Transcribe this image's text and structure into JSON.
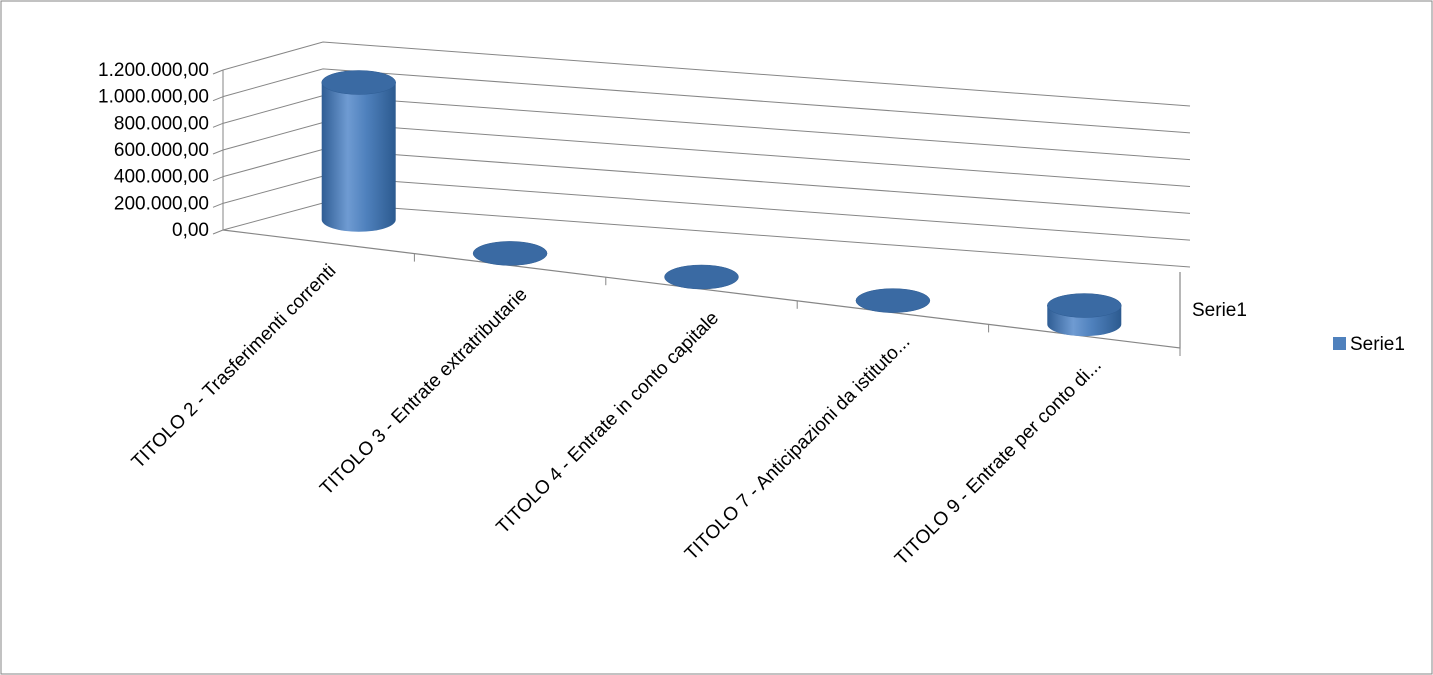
{
  "chart_data": {
    "type": "bar",
    "style": "3d-cylinder",
    "categories": [
      "TITOLO 2 - Trasferimenti correnti",
      "TITOLO 3 - Entrate extratributarie",
      "TITOLO 4 - Entrate in conto capitale",
      "TITOLO 7 - Anticipazioni da istituto...",
      "TITOLO 9 - Entrate per conto di..."
    ],
    "series": [
      {
        "name": "Serie1",
        "values": [
          1030000,
          0,
          0,
          0,
          140000
        ]
      }
    ],
    "y_ticks": [
      "0,00",
      "200.000,00",
      "400.000,00",
      "600.000,00",
      "800.000,00",
      "1.000.000,00",
      "1.200.000,00"
    ],
    "ylim": [
      0,
      1200000
    ],
    "depth_label": "Serie1",
    "legend": {
      "position": "right",
      "entries": [
        "Serie1"
      ]
    },
    "grid": true,
    "colors": {
      "bar": "#4f81bd",
      "bar_dark": "#2f5d94",
      "bar_top": "#3a6aa3",
      "grid": "#868686",
      "frame": "#868686"
    }
  }
}
